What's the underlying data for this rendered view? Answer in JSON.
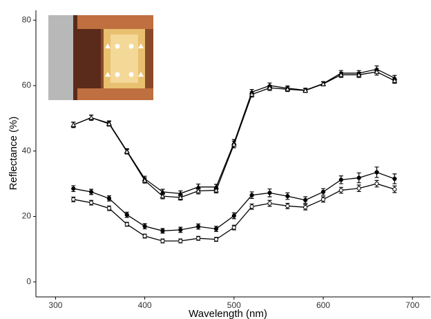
{
  "chart_data": {
    "type": "line",
    "x_label": "Wavelength (nm)",
    "y_label": "Reflectance (%)",
    "x": [
      320,
      340,
      360,
      380,
      400,
      420,
      440,
      460,
      480,
      500,
      520,
      540,
      560,
      580,
      600,
      620,
      640,
      660,
      680
    ],
    "series": [
      {
        "color": "#000000",
        "marker": "triangle",
        "filled": true,
        "values": [
          48,
          50.2,
          48.5,
          40,
          31.5,
          27.5,
          27,
          29,
          29,
          42.5,
          58,
          60,
          59.2,
          58.6,
          60.6,
          63.8,
          63.8,
          65,
          62.3
        ],
        "errors": [
          0.8,
          0.8,
          0.7,
          0.7,
          0.8,
          0.8,
          0.8,
          0.9,
          0.8,
          1,
          0.8,
          0.8,
          0.7,
          0.6,
          0.6,
          0.8,
          0.8,
          1,
          0.8
        ]
      },
      {
        "color": "#000000",
        "marker": "triangle",
        "filled": false,
        "values": [
          48,
          50.2,
          48.3,
          39.8,
          31,
          26.2,
          25.8,
          27.8,
          28,
          42,
          57.3,
          59.3,
          58.9,
          58.5,
          60.5,
          63.3,
          63.3,
          64.2,
          61.5
        ],
        "errors": [
          0.8,
          0.8,
          0.7,
          0.7,
          0.8,
          0.8,
          0.8,
          0.9,
          0.8,
          1,
          0.8,
          0.8,
          0.7,
          0.6,
          0.6,
          0.8,
          0.8,
          1,
          0.8
        ]
      },
      {
        "color": "#000000",
        "marker": "circle",
        "filled": true,
        "values": [
          28.5,
          27.5,
          25.5,
          20.5,
          17,
          15.6,
          15.9,
          16.9,
          16.2,
          20.2,
          26.5,
          27.2,
          26.2,
          25,
          27.5,
          31.2,
          31.8,
          33.5,
          31.5
        ],
        "errors": [
          0.9,
          0.8,
          0.8,
          0.8,
          0.8,
          0.7,
          0.8,
          0.8,
          0.8,
          0.9,
          1,
          1.2,
          1,
          1,
          1,
          1.2,
          1.5,
          1.6,
          1.5
        ]
      },
      {
        "color": "#000000",
        "marker": "circle",
        "filled": false,
        "values": [
          25.2,
          24.2,
          22.5,
          17.6,
          14,
          12.5,
          12.5,
          13.3,
          13,
          16.6,
          23,
          24,
          23.2,
          22.8,
          25.2,
          28,
          28.6,
          30,
          28.3
        ],
        "errors": [
          0.7,
          0.7,
          0.7,
          0.6,
          0.6,
          0.6,
          0.6,
          0.6,
          0.6,
          0.7,
          0.8,
          0.9,
          0.8,
          0.8,
          0.8,
          0.9,
          1,
          1,
          1
        ]
      }
    ],
    "xlim": [
      278,
      720
    ],
    "ylim": [
      -4.6,
      83
    ],
    "xticks": [
      300,
      400,
      500,
      600,
      700
    ],
    "yticks": [
      0,
      20,
      40,
      60,
      80
    ]
  }
}
